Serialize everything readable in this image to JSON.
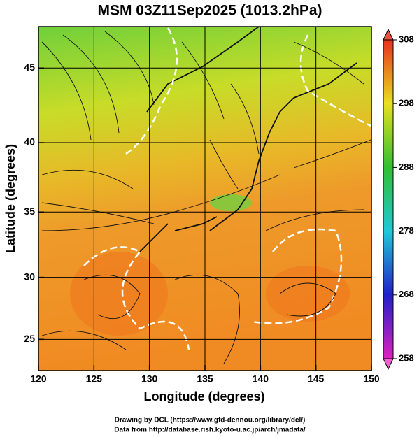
{
  "chart_data": {
    "type": "map",
    "title": "MSM 03Z11Sep2025 (1013.2hPa)",
    "x_label": "Longitude (degrees)",
    "y_label": "Latitude  (degrees)",
    "xlim": [
      120,
      150
    ],
    "xticks": [
      120,
      125,
      130,
      135,
      140,
      145,
      150
    ],
    "ylim": [
      22.4,
      47.6
    ],
    "yticks": [
      25,
      30,
      35,
      40,
      45
    ],
    "y_scale": "mercator",
    "grid": true,
    "colorbar": {
      "lim": [
        258,
        308
      ],
      "ticks": [
        258,
        268,
        278,
        288,
        298,
        308
      ]
    }
  },
  "footer": [
    "Drawing by DCL (https://www.gfd-dennou.org/library/dcl/)",
    "Data from http://database.rish.kyoto-u.ac.jp/arch/jmadata/"
  ]
}
